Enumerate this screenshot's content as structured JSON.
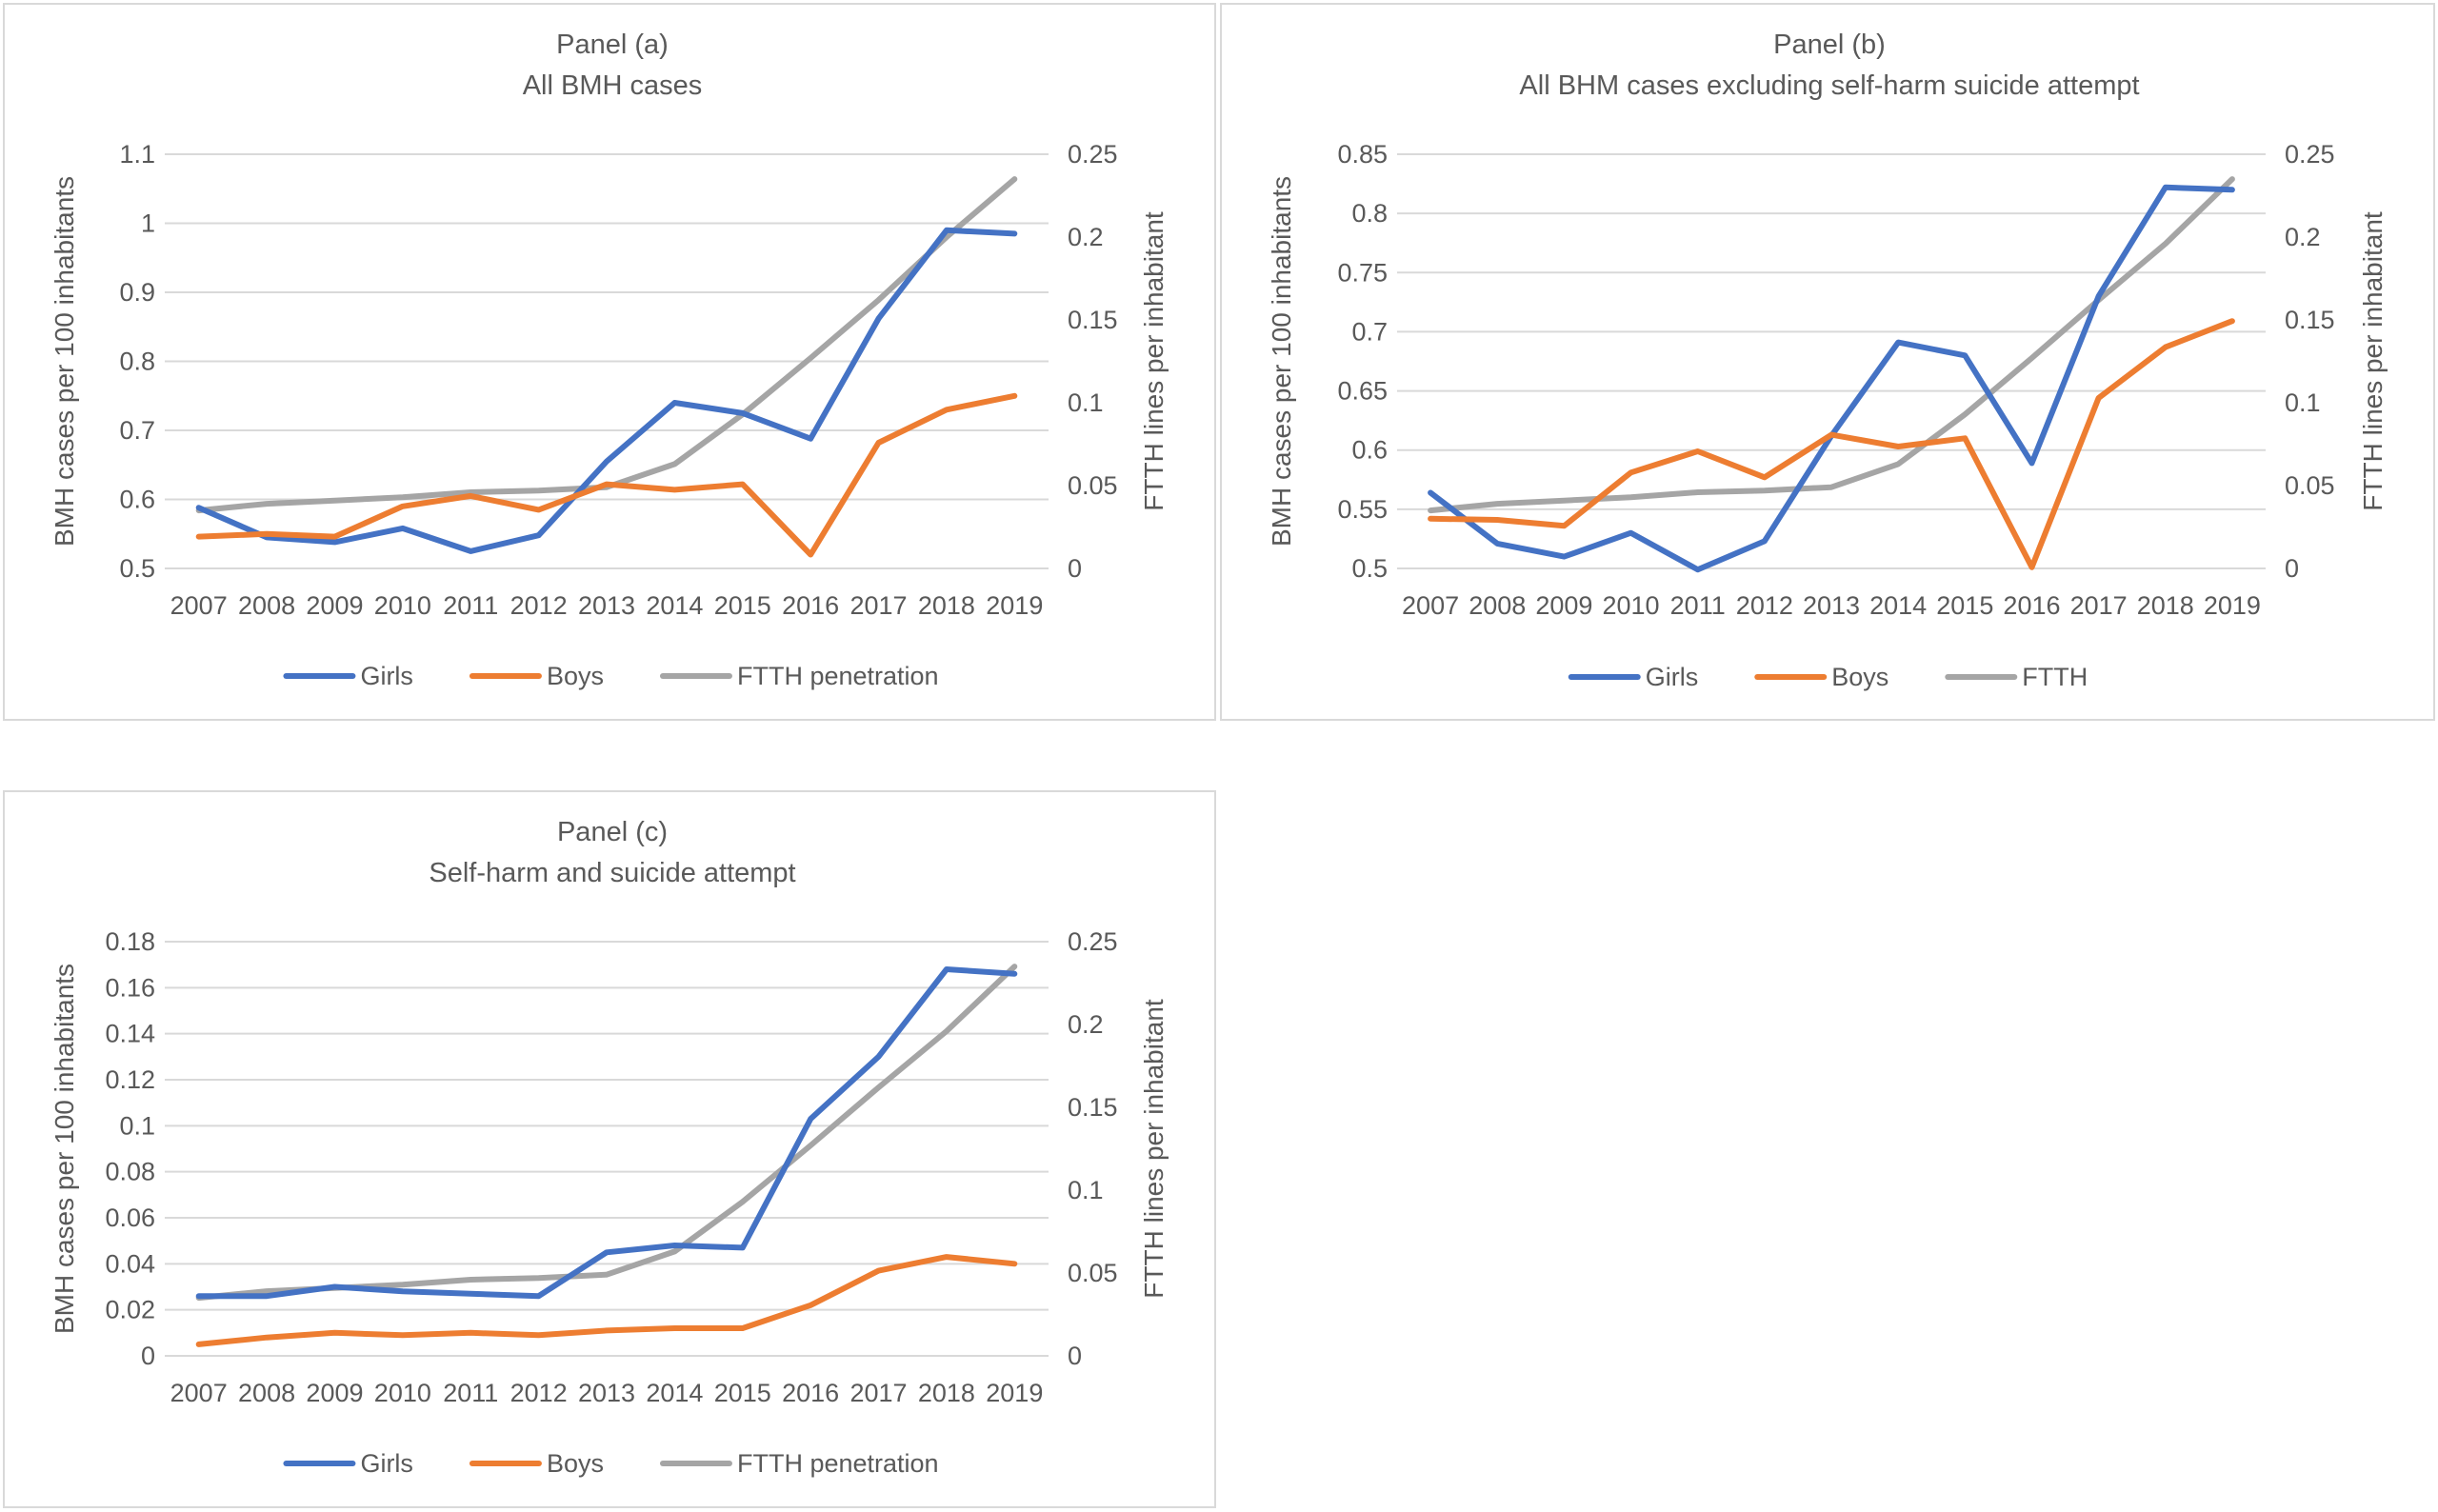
{
  "chart_data": [
    {
      "id": "a",
      "type": "line",
      "title": "Panel (a)",
      "subtitle": "All BMH cases",
      "categories": [
        "2007",
        "2008",
        "2009",
        "2010",
        "2011",
        "2012",
        "2013",
        "2014",
        "2015",
        "2016",
        "2017",
        "2018",
        "2019"
      ],
      "ylabel": "BMH cases per 100 inhabitants",
      "y2label": "FTTH lines per inhabitant",
      "ylim": [
        0.5,
        1.1
      ],
      "yticks": [
        0.5,
        0.6,
        0.7,
        0.8,
        0.9,
        1.0,
        1.1
      ],
      "ytick_labels": [
        "0.5",
        "0.6",
        "0.7",
        "0.8",
        "0.9",
        "1",
        "1.1"
      ],
      "y2lim": [
        0,
        0.25
      ],
      "y2ticks": [
        0,
        0.05,
        0.1,
        0.15,
        0.2,
        0.25
      ],
      "y2tick_labels": [
        "0",
        "0.05",
        "0.1",
        "0.15",
        "0.2",
        "0.25"
      ],
      "grid": true,
      "legend_position": "bottom",
      "series": [
        {
          "name": "Girls",
          "axis": "left",
          "color": "#4472c4",
          "values": [
            0.588,
            0.545,
            0.538,
            0.558,
            0.525,
            0.548,
            0.655,
            0.74,
            0.725,
            0.688,
            0.862,
            0.99,
            0.985
          ]
        },
        {
          "name": "Boys",
          "axis": "left",
          "color": "#ed7d31",
          "values": [
            0.546,
            0.55,
            0.546,
            0.59,
            0.605,
            0.585,
            0.622,
            0.614,
            0.622,
            0.52,
            0.682,
            0.73,
            0.75
          ]
        },
        {
          "name": "FTTH penetration",
          "axis": "right",
          "color": "#a5a5a5",
          "values": [
            0.035,
            0.039,
            0.041,
            0.043,
            0.046,
            0.047,
            0.049,
            0.063,
            0.093,
            0.127,
            0.162,
            0.2,
            0.235
          ]
        }
      ]
    },
    {
      "id": "b",
      "type": "line",
      "title": "Panel (b)",
      "subtitle": "All BHM cases excluding self-harm suicide attempt",
      "categories": [
        "2007",
        "2008",
        "2009",
        "2010",
        "2011",
        "2012",
        "2013",
        "2014",
        "2015",
        "2016",
        "2017",
        "2018",
        "2019"
      ],
      "ylabel": "BMH cases per 100 inhabitants",
      "y2label": "FTTH lines per inhabitant",
      "ylim": [
        0.5,
        0.85
      ],
      "yticks": [
        0.5,
        0.55,
        0.6,
        0.65,
        0.7,
        0.75,
        0.8,
        0.85
      ],
      "ytick_labels": [
        "0.5",
        "0.55",
        "0.6",
        "0.65",
        "0.7",
        "0.75",
        "0.8",
        "0.85"
      ],
      "y2lim": [
        0,
        0.25
      ],
      "y2ticks": [
        0,
        0.05,
        0.1,
        0.15,
        0.2,
        0.25
      ],
      "y2tick_labels": [
        "0",
        "0.05",
        "0.1",
        "0.15",
        "0.2",
        "0.25"
      ],
      "grid": true,
      "legend_position": "bottom",
      "series": [
        {
          "name": "Girls",
          "axis": "left",
          "color": "#4472c4",
          "values": [
            0.564,
            0.521,
            0.51,
            0.53,
            0.499,
            0.523,
            0.612,
            0.691,
            0.68,
            0.589,
            0.73,
            0.822,
            0.82
          ]
        },
        {
          "name": "Boys",
          "axis": "left",
          "color": "#ed7d31",
          "values": [
            0.542,
            0.541,
            0.536,
            0.581,
            0.599,
            0.577,
            0.613,
            0.603,
            0.61,
            0.501,
            0.644,
            0.687,
            0.709
          ]
        },
        {
          "name": "FTTH",
          "axis": "right",
          "color": "#a5a5a5",
          "values": [
            0.035,
            0.039,
            0.041,
            0.043,
            0.046,
            0.047,
            0.049,
            0.063,
            0.093,
            0.127,
            0.162,
            0.196,
            0.235
          ]
        }
      ]
    },
    {
      "id": "c",
      "type": "line",
      "title": "Panel (c)",
      "subtitle": "Self-harm and suicide attempt",
      "categories": [
        "2007",
        "2008",
        "2009",
        "2010",
        "2011",
        "2012",
        "2013",
        "2014",
        "2015",
        "2016",
        "2017",
        "2018",
        "2019"
      ],
      "ylabel": "BMH cases per 100 inhabitants",
      "y2label": "FTTH lines per inhabitant",
      "ylim": [
        0,
        0.18
      ],
      "yticks": [
        0,
        0.02,
        0.04,
        0.06,
        0.08,
        0.1,
        0.12,
        0.14,
        0.16,
        0.18
      ],
      "ytick_labels": [
        "0",
        "0.02",
        "0.04",
        "0.06",
        "0.08",
        "0.1",
        "0.12",
        "0.14",
        "0.16",
        "0.18"
      ],
      "y2lim": [
        0,
        0.25
      ],
      "y2ticks": [
        0,
        0.05,
        0.1,
        0.15,
        0.2,
        0.25
      ],
      "y2tick_labels": [
        "0",
        "0.05",
        "0.1",
        "0.15",
        "0.2",
        "0.25"
      ],
      "grid": true,
      "legend_position": "bottom",
      "series": [
        {
          "name": "Girls",
          "axis": "left",
          "color": "#4472c4",
          "values": [
            0.026,
            0.026,
            0.03,
            0.028,
            0.027,
            0.026,
            0.045,
            0.048,
            0.047,
            0.103,
            0.13,
            0.168,
            0.166
          ]
        },
        {
          "name": "Boys",
          "axis": "left",
          "color": "#ed7d31",
          "values": [
            0.005,
            0.008,
            0.01,
            0.009,
            0.01,
            0.009,
            0.011,
            0.012,
            0.012,
            0.022,
            0.037,
            0.043,
            0.04
          ]
        },
        {
          "name": "FTTH penetration",
          "axis": "right",
          "color": "#a5a5a5",
          "values": [
            0.035,
            0.039,
            0.041,
            0.043,
            0.046,
            0.047,
            0.049,
            0.063,
            0.093,
            0.127,
            0.162,
            0.196,
            0.235
          ]
        }
      ]
    }
  ]
}
